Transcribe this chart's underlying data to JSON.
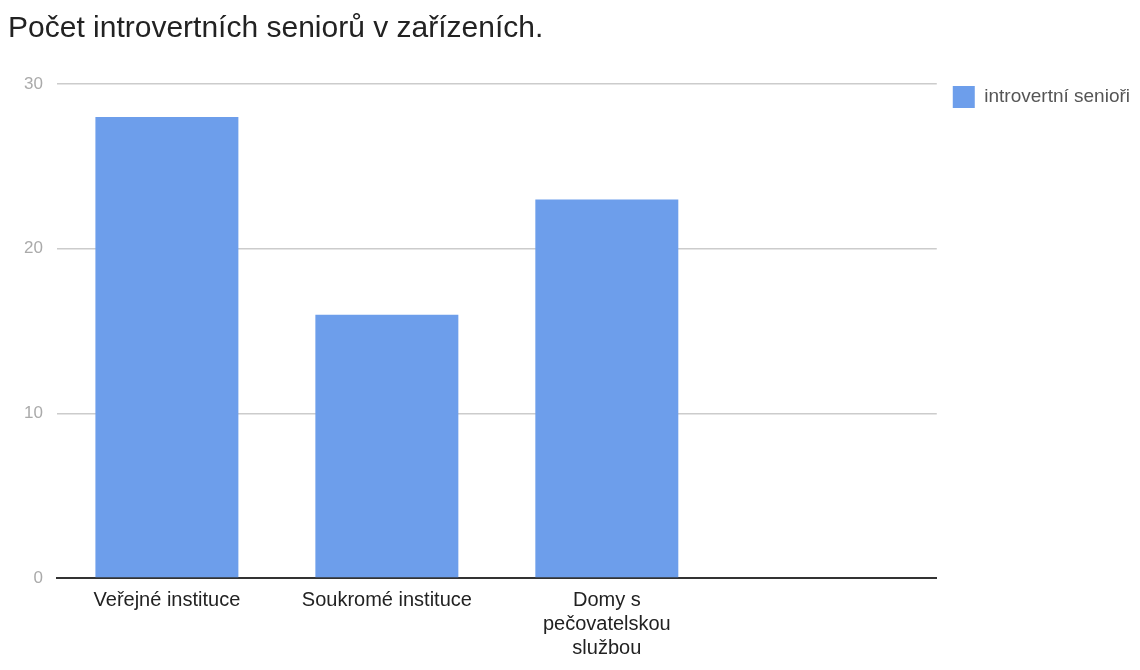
{
  "chart_data": {
    "type": "bar",
    "title": "Počet introvertních seniorů v zařízeních.",
    "categories": [
      "Veřejné instituce",
      "Soukromé instituce",
      "Domy s pečovatelskou službou",
      null
    ],
    "series": [
      {
        "name": "introvertní senioři",
        "color": "#6d9eeb",
        "values": [
          28,
          16,
          23,
          null
        ]
      }
    ],
    "ylim": [
      0,
      30
    ],
    "yticks": [
      0,
      10,
      20,
      30
    ],
    "grid": "y",
    "legend": "top right"
  }
}
